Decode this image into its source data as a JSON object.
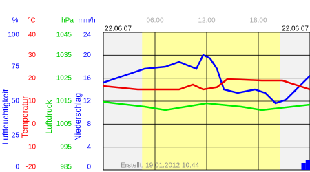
{
  "chart_data": {
    "type": "line",
    "dates": [
      "22.06.07",
      "22.06.07"
    ],
    "note": "Erstellt: 19.01.2012 10:44",
    "xlim": [
      0,
      24
    ],
    "xticks": [
      {
        "value": 6,
        "label": "06:00"
      },
      {
        "value": 12,
        "label": "12:00"
      },
      {
        "value": 18,
        "label": "18:00"
      }
    ],
    "daylight": [
      4.5,
      20.5
    ],
    "grid": true,
    "axes": [
      {
        "unit": "%",
        "title": "Luftfeuchtigkeit",
        "color": "#0000ff",
        "lim": [
          0,
          100
        ],
        "ticks": [
          0,
          25,
          50,
          75,
          100
        ]
      },
      {
        "unit": "°C",
        "title": "Temperatur",
        "color": "#ff0000",
        "lim": [
          -20,
          40
        ],
        "ticks": [
          -20,
          -10,
          0,
          10,
          20,
          30,
          40
        ]
      },
      {
        "unit": "hPa",
        "title": "Luftdruck",
        "color": "#00cc00",
        "lim": [
          985,
          1045
        ],
        "ticks": [
          985,
          995,
          1005,
          1015,
          1025,
          1035,
          1045
        ]
      },
      {
        "unit": "mm/h",
        "title": "Niederschlag",
        "color": "#0000ff",
        "lim": [
          0,
          24
        ],
        "ticks": [
          0,
          4,
          8,
          12,
          16,
          20,
          24
        ]
      }
    ],
    "series": [
      {
        "type": "line",
        "axis": 0,
        "color": "#0000ff",
        "x": [
          0,
          4.8,
          7.2,
          8.8,
          10.8,
          11.6,
          12.4,
          13.2,
          14,
          15.6,
          17.6,
          18.8,
          20,
          21.2,
          22.4,
          24
        ],
        "values": [
          63.5,
          73.5,
          75,
          78.5,
          73.5,
          83.5,
          81,
          73.5,
          58.5,
          56,
          58.5,
          56,
          48.5,
          51,
          58.5,
          68.5
        ]
      },
      {
        "type": "line",
        "axis": 1,
        "color": "#ee0000",
        "x": [
          0,
          4,
          8.8,
          10.4,
          11.6,
          13.2,
          14.4,
          18.4,
          20.8,
          24
        ],
        "values": [
          16.6,
          15.1,
          15.1,
          17.2,
          15.1,
          16.1,
          19.6,
          19,
          19,
          15.1
        ]
      },
      {
        "type": "line",
        "axis": 2,
        "color": "#00ee00",
        "x": [
          0,
          4.8,
          7.2,
          12,
          16,
          18.4,
          24
        ],
        "values": [
          1014.7,
          1012.6,
          1011.1,
          1014.1,
          1012.6,
          1011.1,
          1013.5
        ]
      },
      {
        "type": "bar",
        "axis": 3,
        "color": "#0000ff",
        "x": [
          23,
          23.5
        ],
        "values": [
          1.2,
          1.8
        ]
      }
    ]
  }
}
